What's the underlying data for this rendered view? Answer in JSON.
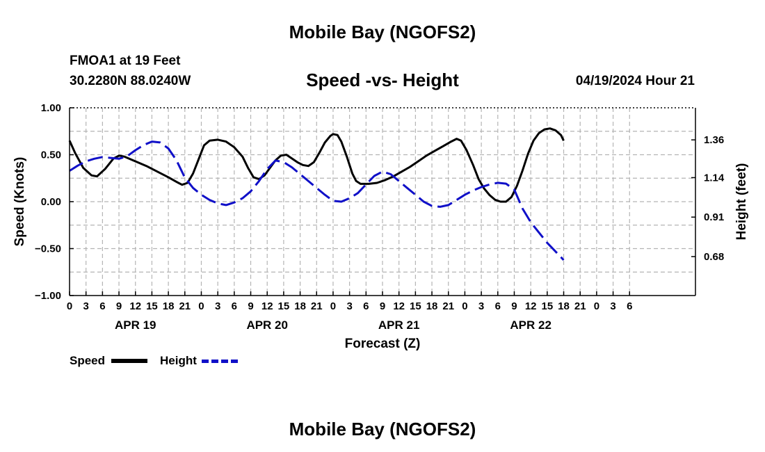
{
  "header": {
    "top_title": "Mobile Bay (NGOFS2)",
    "station": "FMOA1 at 19 Feet",
    "coords": "30.2280N  88.0240W",
    "chart_title": "Speed -vs- Height",
    "datetime": "04/19/2024 Hour 21",
    "bottom_title": "Mobile Bay (NGOFS2)"
  },
  "legend": {
    "speed_label": "Speed",
    "height_label": "Height"
  },
  "colors": {
    "speed": "#000000",
    "height": "#1010c8",
    "grid": "#b4b4b4"
  },
  "chart_data": {
    "type": "line",
    "xlabel": "Forecast (Z)",
    "ylabel_left": "Speed (Knots)",
    "ylabel_right": "Height (feet)",
    "x_range_hours": [
      0,
      114
    ],
    "ylim_left": [
      -1.0,
      1.0
    ],
    "ylim_right": [
      0.453,
      1.547
    ],
    "grid": true,
    "x_ticks": [
      {
        "h": 0,
        "label": "0"
      },
      {
        "h": 3,
        "label": "3"
      },
      {
        "h": 6,
        "label": "6"
      },
      {
        "h": 9,
        "label": "9"
      },
      {
        "h": 12,
        "label": "12"
      },
      {
        "h": 15,
        "label": "15"
      },
      {
        "h": 18,
        "label": "18"
      },
      {
        "h": 21,
        "label": "21"
      },
      {
        "h": 24,
        "label": "0"
      },
      {
        "h": 27,
        "label": "3"
      },
      {
        "h": 30,
        "label": "6"
      },
      {
        "h": 33,
        "label": "9"
      },
      {
        "h": 36,
        "label": "12"
      },
      {
        "h": 39,
        "label": "15"
      },
      {
        "h": 42,
        "label": "18"
      },
      {
        "h": 45,
        "label": "21"
      },
      {
        "h": 48,
        "label": "0"
      },
      {
        "h": 51,
        "label": "3"
      },
      {
        "h": 54,
        "label": "6"
      },
      {
        "h": 57,
        "label": "9"
      },
      {
        "h": 60,
        "label": "12"
      },
      {
        "h": 63,
        "label": "15"
      },
      {
        "h": 66,
        "label": "18"
      },
      {
        "h": 69,
        "label": "21"
      },
      {
        "h": 72,
        "label": "0"
      },
      {
        "h": 75,
        "label": "3"
      },
      {
        "h": 78,
        "label": "6"
      },
      {
        "h": 81,
        "label": "9"
      },
      {
        "h": 84,
        "label": "12"
      },
      {
        "h": 87,
        "label": "15"
      },
      {
        "h": 90,
        "label": "18"
      },
      {
        "h": 93,
        "label": "21"
      },
      {
        "h": 96,
        "label": "0"
      },
      {
        "h": 99,
        "label": "3"
      },
      {
        "h": 102,
        "label": "6"
      }
    ],
    "date_labels": [
      {
        "h": 12,
        "label": "APR 19"
      },
      {
        "h": 36,
        "label": "APR 20"
      },
      {
        "h": 60,
        "label": "APR 21"
      },
      {
        "h": 84,
        "label": "APR 22"
      }
    ],
    "y_ticks_left": [
      {
        "v": 1.0,
        "label": "1.00"
      },
      {
        "v": 0.5,
        "label": "0.50"
      },
      {
        "v": 0.0,
        "label": "0.00"
      },
      {
        "v": -0.5,
        "label": "−0.50"
      },
      {
        "v": -1.0,
        "label": "−1.00"
      }
    ],
    "y_ticks_right": [
      {
        "v": 1.36,
        "label": "1.36"
      },
      {
        "v": 1.14,
        "label": "1.14"
      },
      {
        "v": 0.91,
        "label": "0.91"
      },
      {
        "v": 0.68,
        "label": "0.68"
      }
    ],
    "series": [
      {
        "name": "Speed",
        "axis": "left",
        "points": [
          [
            0,
            0.65
          ],
          [
            1,
            0.52
          ],
          [
            2.5,
            0.36
          ],
          [
            4,
            0.28
          ],
          [
            5,
            0.27
          ],
          [
            6.5,
            0.35
          ],
          [
            8,
            0.46
          ],
          [
            9,
            0.49
          ],
          [
            10,
            0.48
          ],
          [
            12,
            0.43
          ],
          [
            14,
            0.38
          ],
          [
            16,
            0.32
          ],
          [
            18,
            0.26
          ],
          [
            19.5,
            0.21
          ],
          [
            20.5,
            0.18
          ],
          [
            21.5,
            0.2
          ],
          [
            22.5,
            0.3
          ],
          [
            23.5,
            0.45
          ],
          [
            24.5,
            0.6
          ],
          [
            25.5,
            0.65
          ],
          [
            27,
            0.66
          ],
          [
            28.5,
            0.64
          ],
          [
            30,
            0.58
          ],
          [
            31.5,
            0.48
          ],
          [
            32.5,
            0.36
          ],
          [
            33.5,
            0.26
          ],
          [
            34.5,
            0.24
          ],
          [
            35.5,
            0.28
          ],
          [
            36.5,
            0.36
          ],
          [
            37.5,
            0.44
          ],
          [
            38.5,
            0.49
          ],
          [
            39.5,
            0.5
          ],
          [
            40.5,
            0.46
          ],
          [
            41.5,
            0.42
          ],
          [
            42.5,
            0.39
          ],
          [
            43.5,
            0.38
          ],
          [
            44.5,
            0.42
          ],
          [
            45.5,
            0.52
          ],
          [
            46.5,
            0.63
          ],
          [
            47.5,
            0.7
          ],
          [
            48,
            0.72
          ],
          [
            48.8,
            0.71
          ],
          [
            49.5,
            0.64
          ],
          [
            50.5,
            0.48
          ],
          [
            51.5,
            0.3
          ],
          [
            52.2,
            0.22
          ],
          [
            53,
            0.19
          ],
          [
            54.5,
            0.19
          ],
          [
            56,
            0.2
          ],
          [
            57.5,
            0.23
          ],
          [
            59,
            0.27
          ],
          [
            60.5,
            0.32
          ],
          [
            62,
            0.37
          ],
          [
            63.5,
            0.43
          ],
          [
            65,
            0.49
          ],
          [
            66.5,
            0.54
          ],
          [
            68,
            0.59
          ],
          [
            69.5,
            0.64
          ],
          [
            70.5,
            0.67
          ],
          [
            71.3,
            0.65
          ],
          [
            72.3,
            0.55
          ],
          [
            73.5,
            0.39
          ],
          [
            74.5,
            0.24
          ],
          [
            75.5,
            0.14
          ],
          [
            76.5,
            0.07
          ],
          [
            77.5,
            0.02
          ],
          [
            78.5,
            0.0
          ],
          [
            79.5,
            0.0
          ],
          [
            80.5,
            0.05
          ],
          [
            81.5,
            0.17
          ],
          [
            82.5,
            0.33
          ],
          [
            83.5,
            0.51
          ],
          [
            84.5,
            0.65
          ],
          [
            85.5,
            0.73
          ],
          [
            86.5,
            0.77
          ],
          [
            87.5,
            0.78
          ],
          [
            88.5,
            0.76
          ],
          [
            89.5,
            0.71
          ],
          [
            90,
            0.65
          ]
        ]
      },
      {
        "name": "Height",
        "axis": "right",
        "points": [
          [
            0,
            1.18
          ],
          [
            1.5,
            1.21
          ],
          [
            3,
            1.235
          ],
          [
            4.5,
            1.25
          ],
          [
            6,
            1.26
          ],
          [
            7.5,
            1.255
          ],
          [
            9,
            1.25
          ],
          [
            10.5,
            1.265
          ],
          [
            12,
            1.3
          ],
          [
            13.5,
            1.33
          ],
          [
            15,
            1.35
          ],
          [
            16.5,
            1.345
          ],
          [
            18,
            1.31
          ],
          [
            19.5,
            1.24
          ],
          [
            21,
            1.14
          ],
          [
            22.5,
            1.08
          ],
          [
            24,
            1.04
          ],
          [
            25.5,
            1.01
          ],
          [
            27,
            0.99
          ],
          [
            28.5,
            0.98
          ],
          [
            30,
            0.995
          ],
          [
            31.5,
            1.02
          ],
          [
            33,
            1.06
          ],
          [
            34.5,
            1.12
          ],
          [
            36,
            1.19
          ],
          [
            37.5,
            1.24
          ],
          [
            39,
            1.23
          ],
          [
            40.5,
            1.2
          ],
          [
            42,
            1.16
          ],
          [
            43.5,
            1.12
          ],
          [
            45,
            1.08
          ],
          [
            46.5,
            1.04
          ],
          [
            48,
            1.005
          ],
          [
            49.5,
            1.0
          ],
          [
            51,
            1.02
          ],
          [
            52.5,
            1.05
          ],
          [
            54,
            1.1
          ],
          [
            55.5,
            1.15
          ],
          [
            57,
            1.175
          ],
          [
            58.5,
            1.16
          ],
          [
            60,
            1.12
          ],
          [
            61.5,
            1.08
          ],
          [
            63,
            1.04
          ],
          [
            64.5,
            1.0
          ],
          [
            66,
            0.975
          ],
          [
            67.5,
            0.97
          ],
          [
            69,
            0.98
          ],
          [
            70.5,
            1.01
          ],
          [
            72,
            1.04
          ],
          [
            73.5,
            1.065
          ],
          [
            75,
            1.085
          ],
          [
            76.5,
            1.1
          ],
          [
            78,
            1.11
          ],
          [
            79.5,
            1.105
          ],
          [
            81,
            1.07
          ],
          [
            82.5,
            0.96
          ],
          [
            84,
            0.88
          ],
          [
            85.5,
            0.82
          ],
          [
            87,
            0.76
          ],
          [
            88.5,
            0.71
          ],
          [
            90,
            0.66
          ]
        ]
      }
    ]
  }
}
